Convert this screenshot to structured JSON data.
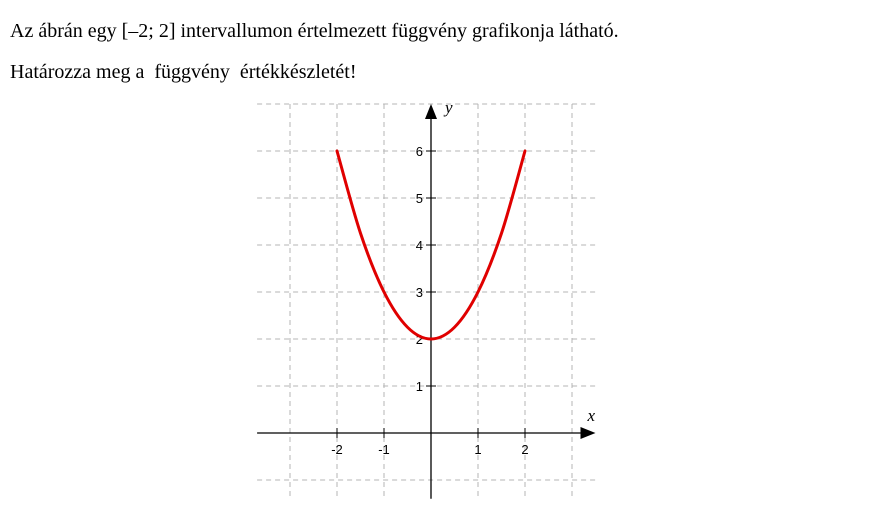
{
  "problem": {
    "line1": "Az ábrán egy [–2; 2] intervallumon értelmezett függvény grafikonja látható.",
    "line2": "Határozza meg a  függvény  értékkészletét!"
  },
  "chart_data": {
    "type": "line",
    "xlabel": "x",
    "ylabel": "y",
    "x_ticks": [
      "-2",
      "-1",
      "1",
      "2"
    ],
    "y_ticks": [
      "1",
      "2",
      "3",
      "4",
      "5",
      "6"
    ],
    "xlim": [
      -3.7,
      3.5
    ],
    "ylim": [
      -1.4,
      7.0
    ],
    "grid": true,
    "series": [
      {
        "color": "#e00000",
        "x": [
          -2,
          -1.5,
          -1,
          -0.5,
          0,
          0.5,
          1,
          1.5,
          2
        ],
        "y": [
          6,
          4.25,
          3,
          2.25,
          2,
          2.25,
          3,
          4.25,
          6
        ]
      }
    ]
  }
}
